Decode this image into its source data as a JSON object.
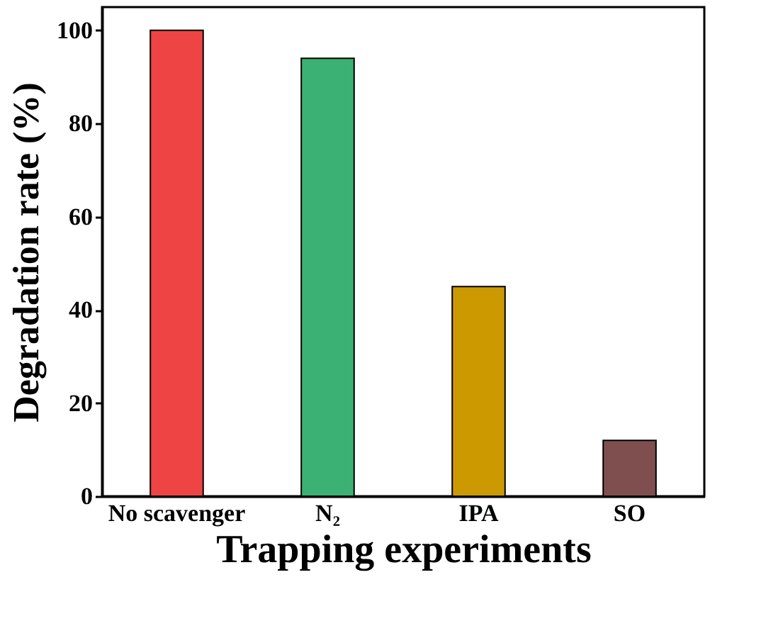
{
  "chart_data": {
    "type": "bar",
    "xlabel": "Trapping experiments",
    "ylabel": "Degradation rate (%)",
    "categories": [
      "No scavenger",
      "N₂",
      "IPA",
      "SO"
    ],
    "values": [
      100,
      94,
      45,
      12
    ],
    "colors": [
      "#ef4444",
      "#3bb273",
      "#cc9900",
      "#7f4f4f"
    ],
    "ylim": [
      0,
      105
    ],
    "yticks": [
      0,
      20,
      40,
      60,
      80,
      100
    ],
    "grid": false
  }
}
